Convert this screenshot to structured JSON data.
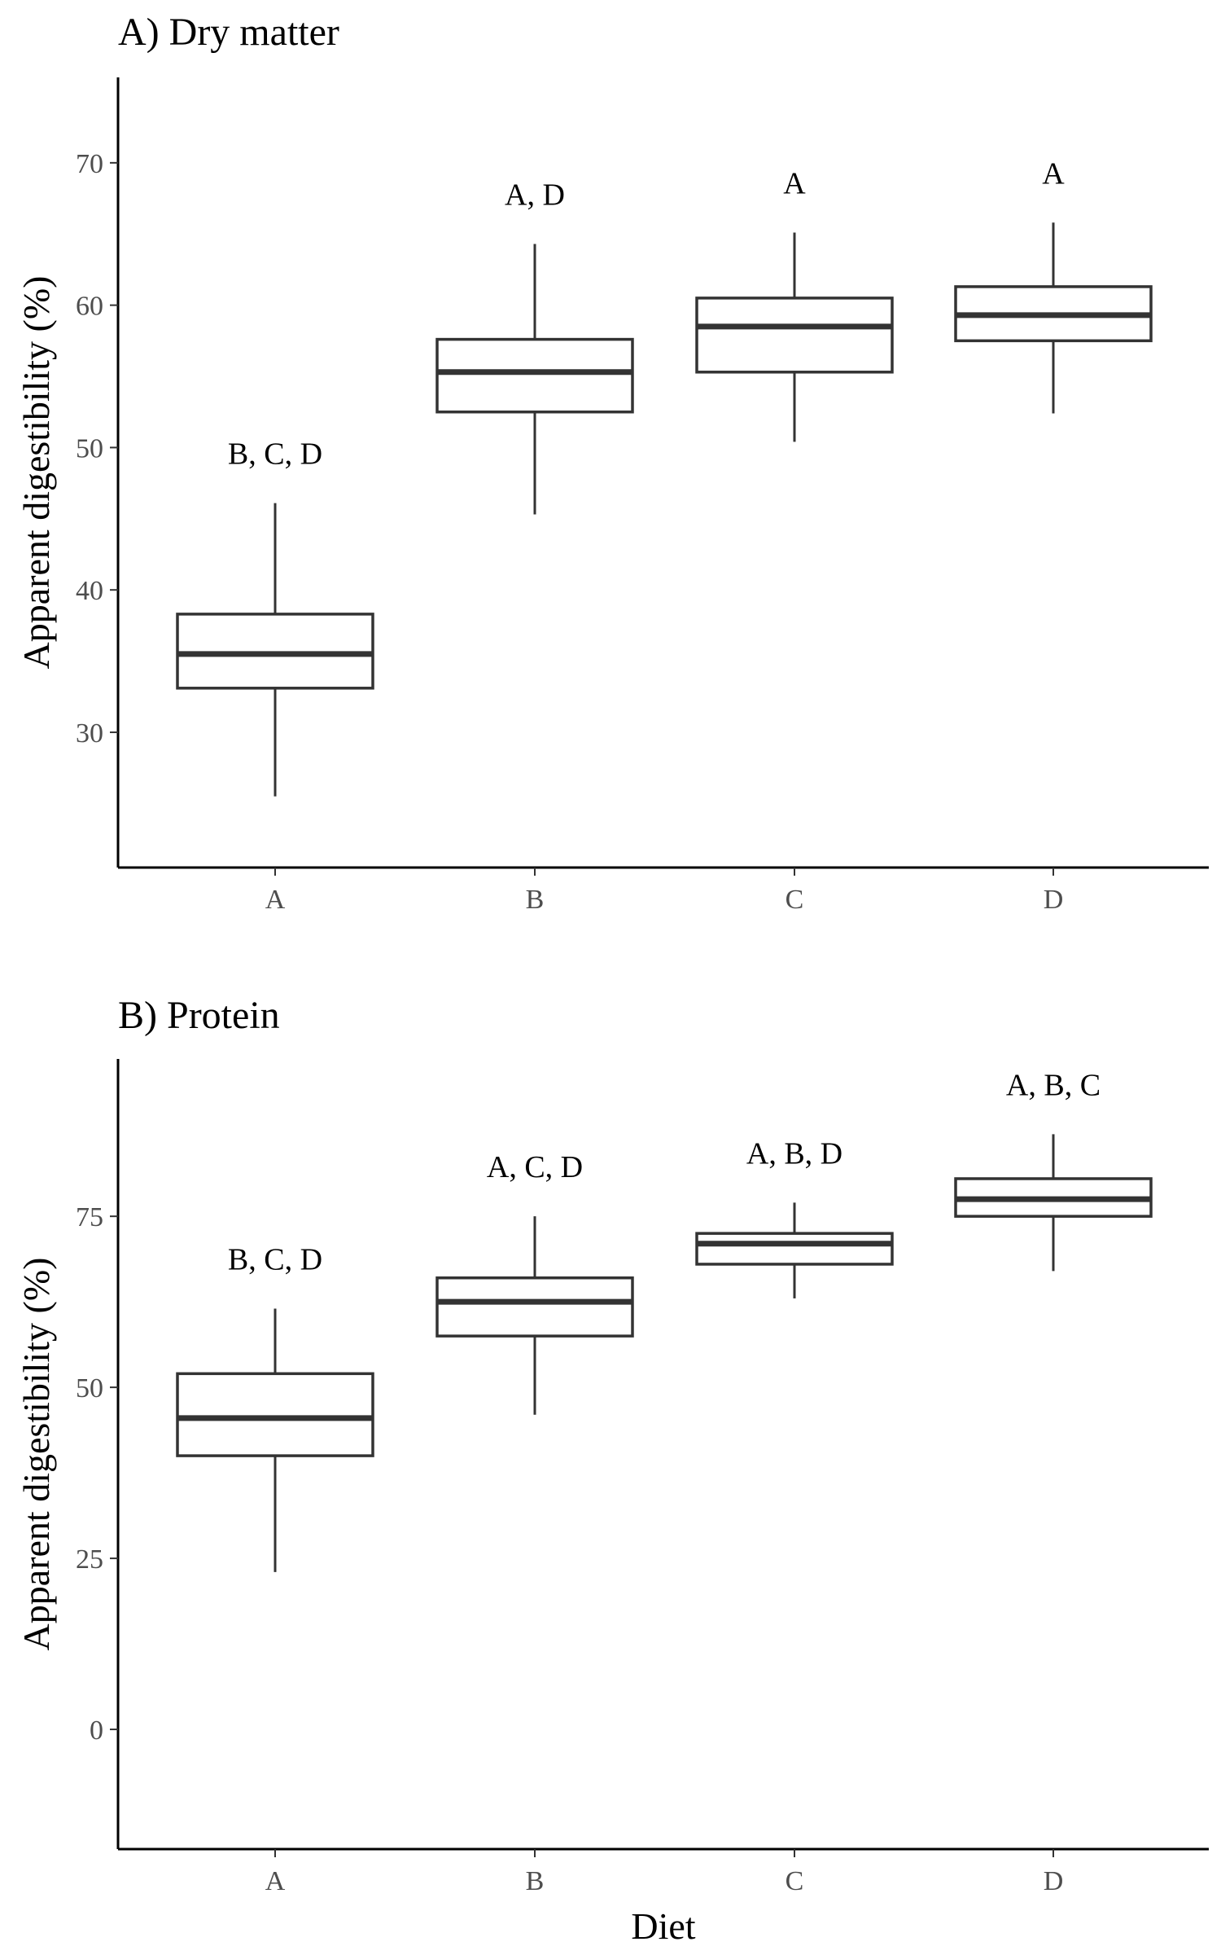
{
  "chart_data": [
    {
      "type": "box",
      "title": "A) Dry matter",
      "xlabel": "",
      "ylabel": "Apparent digestibility (%)",
      "ylim": [
        20.5,
        76
      ],
      "yticks": [
        30,
        40,
        50,
        60,
        70
      ],
      "categories": [
        "A",
        "B",
        "C",
        "D"
      ],
      "boxes": [
        {
          "category": "A",
          "min": 25.5,
          "q1": 33.1,
          "median": 35.5,
          "q3": 38.3,
          "max": 46.1,
          "label": "B, C, D"
        },
        {
          "category": "B",
          "min": 45.3,
          "q1": 52.5,
          "median": 55.3,
          "q3": 57.6,
          "max": 64.3,
          "label": "A, D"
        },
        {
          "category": "C",
          "min": 50.4,
          "q1": 55.3,
          "median": 58.5,
          "q3": 60.5,
          "max": 65.1,
          "label": "A"
        },
        {
          "category": "D",
          "min": 52.4,
          "q1": 57.5,
          "median": 59.3,
          "q3": 61.3,
          "max": 65.8,
          "label": "A"
        }
      ]
    },
    {
      "type": "box",
      "title": "B) Protein",
      "xlabel": "Diet",
      "ylabel": "Apparent digestibility (%)",
      "ylim": [
        -17.5,
        98
      ],
      "yticks": [
        0,
        25,
        50,
        75
      ],
      "categories": [
        "A",
        "B",
        "C",
        "D"
      ],
      "boxes": [
        {
          "category": "A",
          "min": 23.0,
          "q1": 40.0,
          "median": 45.5,
          "q3": 52.0,
          "max": 61.5,
          "label": "B, C, D"
        },
        {
          "category": "B",
          "min": 46.0,
          "q1": 57.5,
          "median": 62.5,
          "q3": 66.0,
          "max": 75.0,
          "label": "A, C, D"
        },
        {
          "category": "C",
          "min": 63.0,
          "q1": 68.0,
          "median": 71.0,
          "q3": 72.5,
          "max": 77.0,
          "label": "A, B, D"
        },
        {
          "category": "D",
          "min": 67.0,
          "q1": 75.0,
          "median": 77.5,
          "q3": 80.5,
          "max": 87.0,
          "label": "A, B, C"
        }
      ]
    }
  ]
}
